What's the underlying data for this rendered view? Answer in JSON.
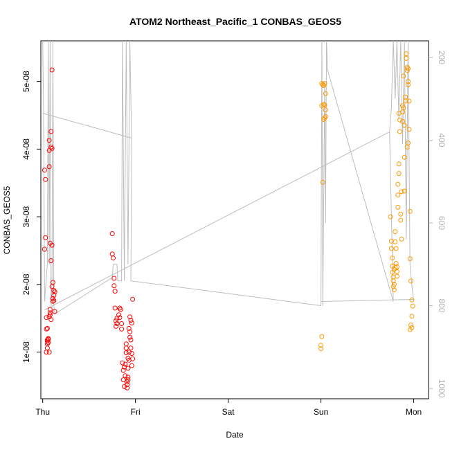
{
  "chart_data": {
    "type": "scatter",
    "title": "ATOM2 Northeast_Pacific_1 CONBAS_GEOS5",
    "xlabel": "Date",
    "ylabel": "CONBAS_GEOS5",
    "x_ticks": [
      "Thu",
      "Fri",
      "Sat",
      "Sun",
      "Mon"
    ],
    "y_ticks": [
      "1e-08",
      "2e-08",
      "3e-08",
      "4e-08",
      "5e-08"
    ],
    "y_tick_values": [
      1e-08,
      2e-08,
      3e-08,
      4e-08,
      5e-08
    ],
    "ylim": [
      3.1e-09,
      5.6e-08
    ],
    "xlim": [
      -0.02,
      4.16
    ],
    "y2_ticks": [
      "200",
      "400",
      "600",
      "800",
      "1000"
    ],
    "y2_tick_values": [
      200,
      400,
      600,
      800,
      1000
    ],
    "y2lim": [
      1025,
      160
    ],
    "colors": {
      "flight1": "#ff0000",
      "flight2": "#ff9900",
      "pressure": "#bdbdbd",
      "axis2": "#b3b3b3"
    },
    "series": [
      {
        "color": "#ff0000",
        "points": [
          [
            0.03,
            3.55e-08
          ],
          [
            0.02,
            3.69e-08
          ],
          [
            0.02,
            2.52e-08
          ],
          [
            0.03,
            2.69e-08
          ],
          [
            0.04,
            1.51e-08
          ],
          [
            0.04,
            1.34e-08
          ],
          [
            0.05,
            1.35e-08
          ],
          [
            0.05,
            1.12e-08
          ],
          [
            0.05,
            1.18e-08
          ],
          [
            0.04,
            1e-08
          ],
          [
            0.05,
            1.06e-08
          ],
          [
            0.05,
            1.16e-08
          ],
          [
            0.06,
            1.14e-08
          ],
          [
            0.06,
            1.2e-08
          ],
          [
            0.07,
            1.52e-08
          ],
          [
            0.07,
            1e-08
          ],
          [
            0.07,
            3.74e-08
          ],
          [
            0.07,
            3.98e-08
          ],
          [
            0.07,
            4.13e-08
          ],
          [
            0.08,
            2.61e-08
          ],
          [
            0.08,
            1.58e-08
          ],
          [
            0.08,
            1.63e-08
          ],
          [
            0.09,
            2.35e-08
          ],
          [
            0.09,
            4.26e-08
          ],
          [
            0.1,
            5.17e-08
          ],
          [
            0.09,
            4.03e-08
          ],
          [
            0.1,
            4.01e-08
          ],
          [
            0.1,
            2.58e-08
          ],
          [
            0.1,
            1.97e-08
          ],
          [
            0.11,
            2.03e-08
          ],
          [
            0.11,
            1.79e-08
          ],
          [
            0.11,
            1.75e-08
          ],
          [
            0.12,
            1.84e-08
          ],
          [
            0.12,
            1.91e-08
          ],
          [
            0.12,
            1.76e-08
          ],
          [
            0.13,
            1.89e-08
          ],
          [
            0.13,
            1.6e-08
          ],
          [
            0.09,
            1.48e-08
          ],
          [
            0.08,
            1.55e-08
          ],
          [
            0.06,
            1.19e-08
          ],
          [
            0.75,
            2.75e-08
          ],
          [
            0.75,
            2.45e-08
          ],
          [
            0.76,
            2.39e-08
          ],
          [
            0.77,
            1.98e-08
          ],
          [
            0.77,
            2.09e-08
          ],
          [
            0.78,
            1.9e-08
          ],
          [
            0.78,
            1.65e-08
          ],
          [
            0.79,
            1.46e-08
          ],
          [
            0.79,
            1.38e-08
          ],
          [
            0.8,
            1.42e-08
          ],
          [
            0.8,
            1.5e-08
          ],
          [
            0.82,
            1.55e-08
          ],
          [
            0.83,
            1.51e-08
          ],
          [
            0.83,
            1.65e-08
          ],
          [
            0.84,
            1.63e-08
          ],
          [
            0.85,
            1.42e-08
          ],
          [
            0.85,
            1.34e-08
          ],
          [
            0.86,
            8.4e-09
          ],
          [
            0.87,
            7.3e-09
          ],
          [
            0.87,
            5.9e-09
          ],
          [
            0.88,
            4.9e-09
          ],
          [
            0.88,
            7.8e-09
          ],
          [
            0.89,
            6.5e-09
          ],
          [
            0.89,
            8.2e-09
          ],
          [
            0.9,
            9.9e-09
          ],
          [
            0.9,
            1.06e-08
          ],
          [
            0.9,
            1.12e-08
          ],
          [
            0.91,
            5.6e-09
          ],
          [
            0.91,
            4.7e-09
          ],
          [
            0.91,
            5.2e-09
          ],
          [
            0.92,
            5.9e-09
          ],
          [
            0.92,
            6.3e-09
          ],
          [
            0.92,
            9.1e-09
          ],
          [
            0.93,
            1e-08
          ],
          [
            0.93,
            1.35e-08
          ],
          [
            0.94,
            1.52e-08
          ],
          [
            0.94,
            1.22e-08
          ],
          [
            0.95,
            1.47e-08
          ],
          [
            0.95,
            1.18e-08
          ],
          [
            0.95,
            1.06e-08
          ],
          [
            0.96,
            1.43e-08
          ],
          [
            0.96,
            9.8e-09
          ],
          [
            0.97,
            1.78e-08
          ],
          [
            0.97,
            9e-09
          ],
          [
            0.96,
            8e-09
          ],
          [
            0.94,
            1.3e-08
          ],
          [
            0.92,
            7.6e-09
          ],
          [
            0.93,
            8.8e-09
          ]
        ]
      },
      {
        "color": "#ff9900",
        "points": [
          [
            3.01,
            4.97e-08
          ],
          [
            3.02,
            4.95e-08
          ],
          [
            3.03,
            4.94e-08
          ],
          [
            3.04,
            4.97e-08
          ],
          [
            3.03,
            4.66e-08
          ],
          [
            3.01,
            4.64e-08
          ],
          [
            3.05,
            4.82e-08
          ],
          [
            3.04,
            4.65e-08
          ],
          [
            3.04,
            4.46e-08
          ],
          [
            3.05,
            4.58e-08
          ],
          [
            3.05,
            4.48e-08
          ],
          [
            3.03,
            4.44e-08
          ],
          [
            3.02,
            3.51e-08
          ],
          [
            3.01,
            1.23e-08
          ],
          [
            3.0,
            1.1e-08
          ],
          [
            3.0,
            1.05e-08
          ],
          [
            3.75,
            3e-08
          ],
          [
            3.76,
            2.64e-08
          ],
          [
            3.76,
            2.53e-08
          ],
          [
            3.77,
            2.39e-08
          ],
          [
            3.77,
            2.27e-08
          ],
          [
            3.77,
            2.18e-08
          ],
          [
            3.78,
            2.11e-08
          ],
          [
            3.78,
            2.05e-08
          ],
          [
            3.78,
            1.97e-08
          ],
          [
            3.79,
            1.92e-08
          ],
          [
            3.79,
            2e-08
          ],
          [
            3.79,
            2.22e-08
          ],
          [
            3.8,
            2.25e-08
          ],
          [
            3.8,
            2.63e-08
          ],
          [
            3.8,
            2.78e-08
          ],
          [
            3.81,
            2.53e-08
          ],
          [
            3.81,
            2.31e-08
          ],
          [
            3.82,
            2.19e-08
          ],
          [
            3.82,
            2.26e-08
          ],
          [
            3.82,
            2.12e-08
          ],
          [
            3.83,
            3.32e-08
          ],
          [
            3.83,
            3.14e-08
          ],
          [
            3.83,
            3.48e-08
          ],
          [
            3.84,
            3.64e-08
          ],
          [
            3.84,
            3.78e-08
          ],
          [
            3.84,
            4.53e-08
          ],
          [
            3.85,
            4.43e-08
          ],
          [
            3.85,
            4.26e-08
          ],
          [
            3.86,
            3.04e-08
          ],
          [
            3.86,
            2.95e-08
          ],
          [
            3.87,
            2.67e-08
          ],
          [
            3.87,
            3.37e-08
          ],
          [
            3.88,
            4.64e-08
          ],
          [
            3.88,
            4.55e-08
          ],
          [
            3.88,
            4.41e-08
          ],
          [
            3.89,
            4.61e-08
          ],
          [
            3.89,
            5.08e-08
          ],
          [
            3.9,
            3.38e-08
          ],
          [
            3.9,
            3.88e-08
          ],
          [
            3.9,
            4.35e-08
          ],
          [
            3.91,
            4.77e-08
          ],
          [
            3.91,
            4.71e-08
          ],
          [
            3.92,
            5.41e-08
          ],
          [
            3.92,
            5.34e-08
          ],
          [
            3.93,
            5.21e-08
          ],
          [
            3.93,
            5.16e-08
          ],
          [
            3.94,
            5.19e-08
          ],
          [
            3.94,
            5e-08
          ],
          [
            3.94,
            4.95e-08
          ],
          [
            3.95,
            4.71e-08
          ],
          [
            3.95,
            4.29e-08
          ],
          [
            3.96,
            3.08e-08
          ],
          [
            3.94,
            4.09e-08
          ],
          [
            3.93,
            4.03e-08
          ],
          [
            3.96,
            2.38e-08
          ],
          [
            3.97,
            2.05e-08
          ],
          [
            3.98,
            1.77e-08
          ],
          [
            3.98,
            1.53e-08
          ],
          [
            3.97,
            1.4e-08
          ],
          [
            3.96,
            1.33e-08
          ],
          [
            3.99,
            1.68e-08
          ],
          [
            3.98,
            1.36e-08
          ]
        ]
      }
    ]
  }
}
